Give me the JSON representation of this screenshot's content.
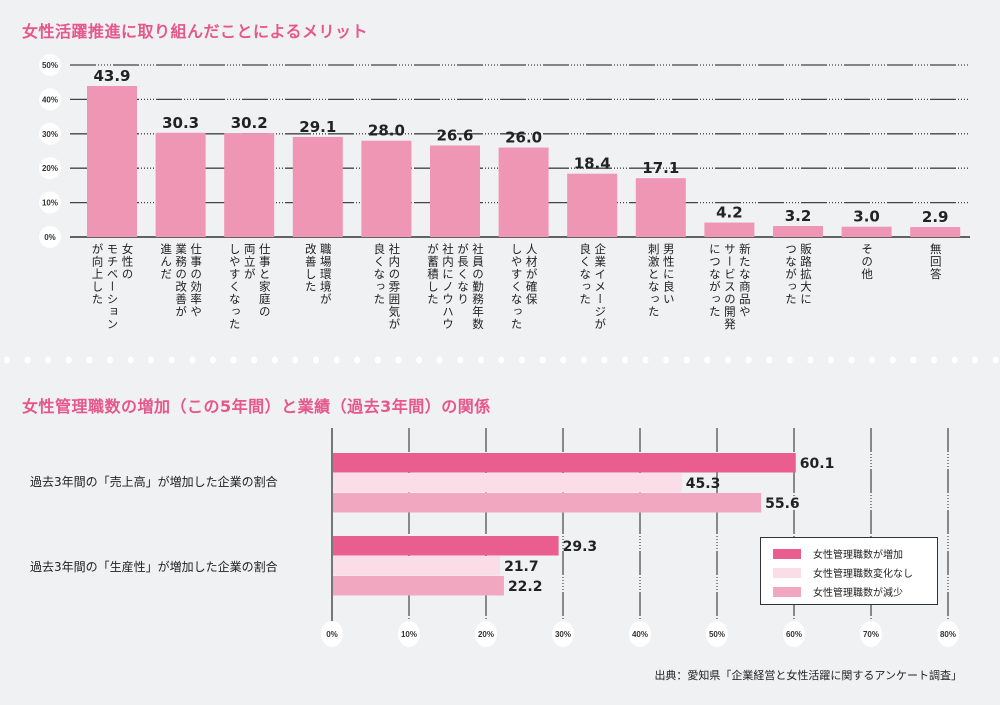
{
  "colors": {
    "title": "#e6578a",
    "top_bar": "#f096b5",
    "increase": "#e95e8e",
    "no_change": "#fbdde7",
    "decrease": "#f2a7c0"
  },
  "chart_data": [
    {
      "type": "bar",
      "title": "女性活躍推進に取り組んだことによるメリット",
      "xlabel": "",
      "ylabel": "",
      "ylim": [
        0,
        50
      ],
      "yticks": [
        0,
        10,
        20,
        30,
        40,
        50
      ],
      "ytick_labels": [
        "0%",
        "10%",
        "20%",
        "30%",
        "40%",
        "50%"
      ],
      "grid": true,
      "categories": [
        "女性の\nモチベーション\nが向上した",
        "仕事の効率や\n業務の改善が\n進んだ",
        "仕事と家庭の\n両立が\nしやすくなった",
        "職場環境が\n改善した",
        "社内の雰囲気が\n良くなった",
        "社員の勤務年数\nが長くなり\n社内にノウハウ\nが蓄積した",
        "人材が確保\nしやすくなった",
        "企業イメージが\n良くなった",
        "男性に良い\n刺激となった",
        "新たな商品や\nサービスの開発\nにつながった",
        "販路拡大に\nつながった",
        "その他",
        "無回答"
      ],
      "values": [
        43.9,
        30.3,
        30.2,
        29.1,
        28.0,
        26.6,
        26.0,
        18.4,
        17.1,
        4.2,
        3.2,
        3.0,
        2.9
      ],
      "value_labels": [
        "43.9",
        "30.3",
        "30.2",
        "29.1",
        "28.0",
        "26.6",
        "26.0",
        "18.4",
        "17.1",
        "4.2",
        "3.2",
        "3.0",
        "2.9"
      ]
    },
    {
      "type": "bar",
      "orientation": "horizontal",
      "title": "女性管理職数の増加（この5年間）と業績（過去3年間）の関係",
      "xlim": [
        0,
        80
      ],
      "xticks": [
        0,
        10,
        20,
        30,
        40,
        50,
        60,
        70,
        80
      ],
      "xtick_labels": [
        "0%",
        "10%",
        "20%",
        "30%",
        "40%",
        "50%",
        "60%",
        "70%",
        "80%"
      ],
      "grid": true,
      "categories": [
        "過去3年間の「売上高」が増加した企業の割合",
        "過去3年間の「生産性」が増加した企業の割合"
      ],
      "series": [
        {
          "name": "女性管理職数が増加",
          "values": [
            60.1,
            29.3
          ],
          "labels": [
            "60.1",
            "29.3"
          ]
        },
        {
          "name": "女性管理職数変化なし",
          "values": [
            45.3,
            21.7
          ],
          "labels": [
            "45.3",
            "21.7"
          ]
        },
        {
          "name": "女性管理職数が減少",
          "values": [
            55.6,
            22.2
          ],
          "labels": [
            "55.6",
            "22.2"
          ]
        }
      ],
      "legend": "bottom-right"
    }
  ],
  "source": "出典：愛知県「企業経営と女性活躍に関するアンケート調査」"
}
